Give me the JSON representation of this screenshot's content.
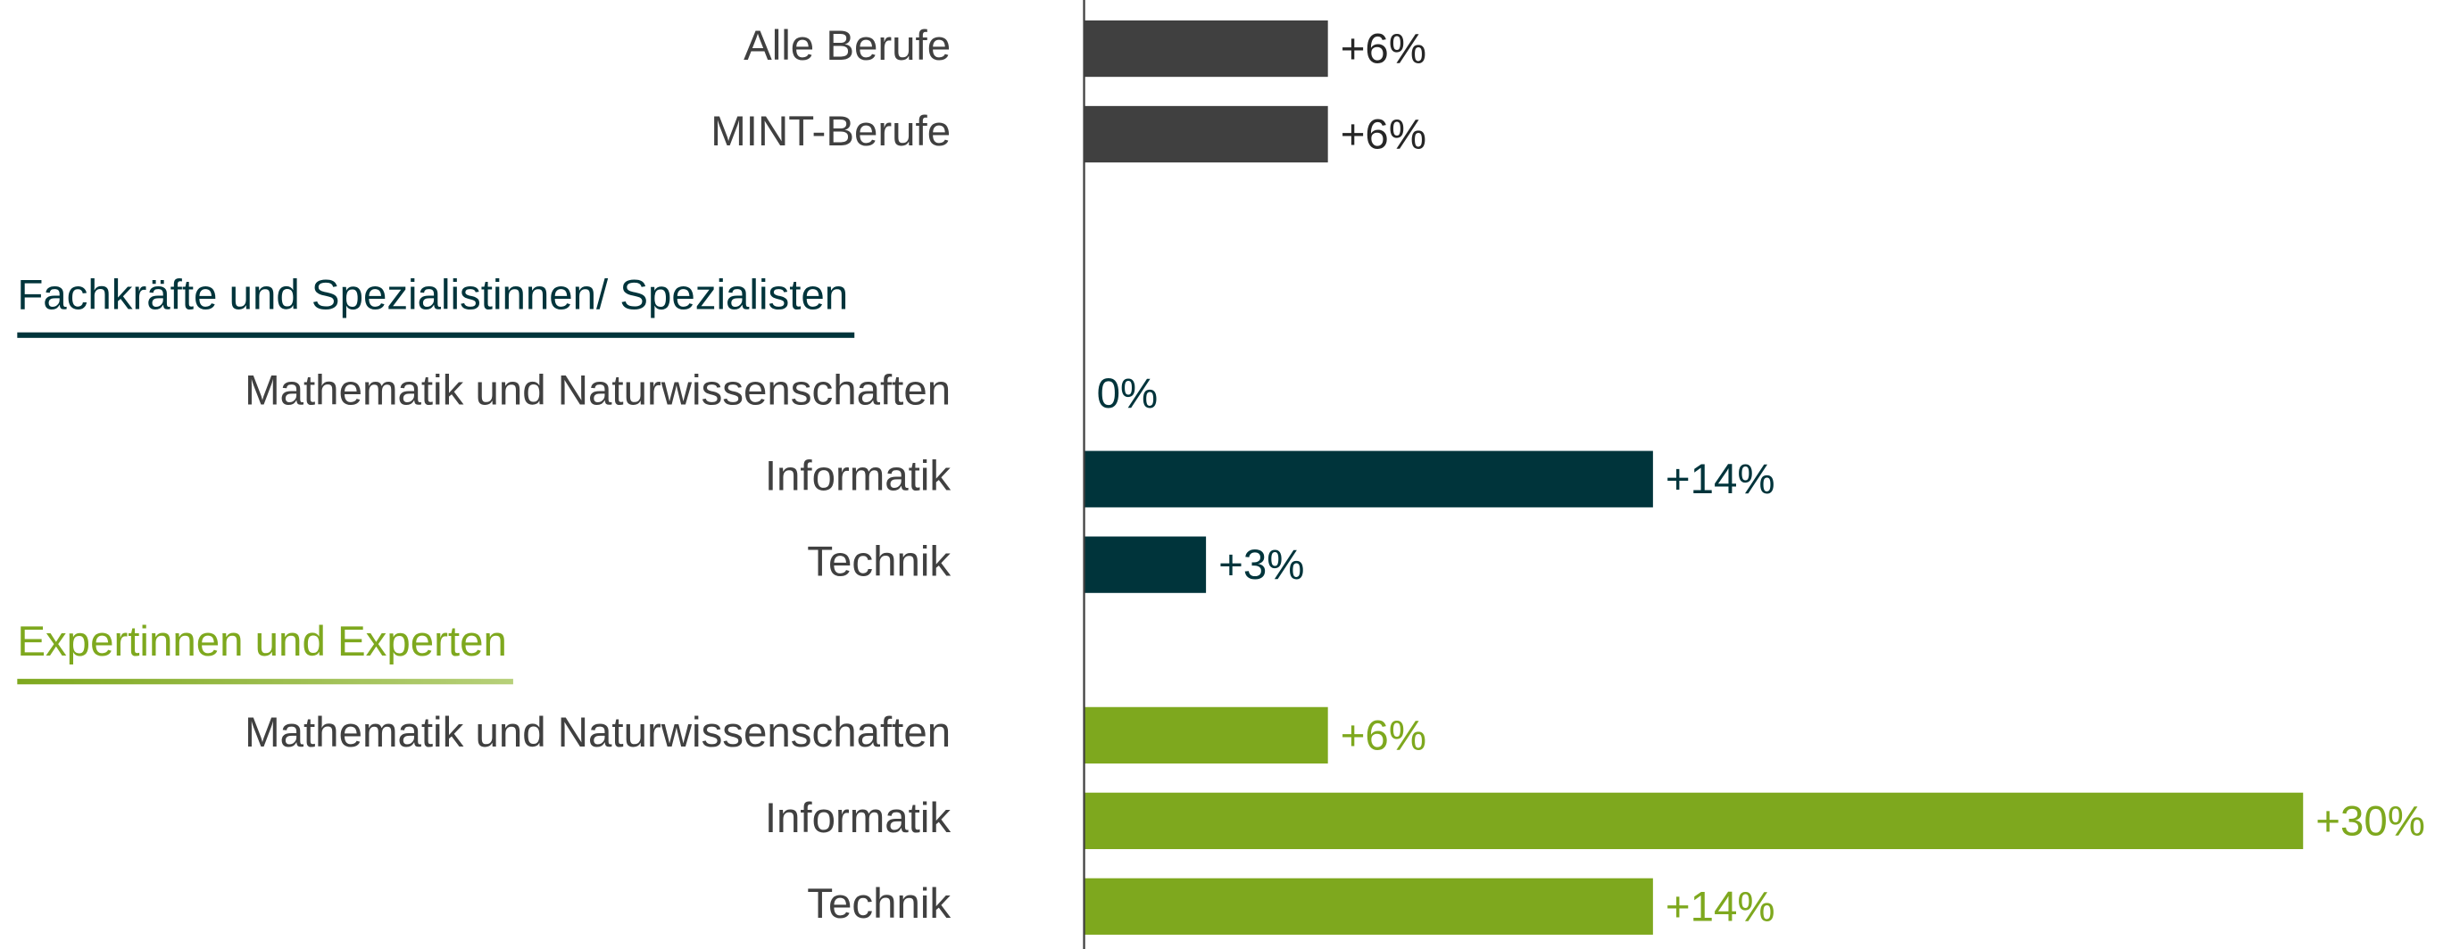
{
  "chart_data": {
    "type": "bar",
    "orientation": "horizontal",
    "xlim": [
      0,
      30
    ],
    "groups": [
      {
        "color": "#404040",
        "label_color": "#262626",
        "categories": [
          "Alle Berufe",
          "MINT-Berufe"
        ],
        "values": [
          6,
          6
        ],
        "value_labels": [
          "+6%",
          "+6%"
        ]
      },
      {
        "title": "Fachkräfte und Spezialistinnen/ Spezialisten",
        "color": "#00343b",
        "label_color": "#00343b",
        "categories": [
          "Mathematik und Naturwissenschaften",
          "Informatik",
          "Technik"
        ],
        "values": [
          0,
          14,
          3
        ],
        "value_labels": [
          "0%",
          "+14%",
          "+3%"
        ]
      },
      {
        "title": "Expertinnen und Experten",
        "color": "#7ea81e",
        "label_color": "#7ea81e",
        "categories": [
          "Mathematik und Naturwissenschaften",
          "Informatik",
          "Technik"
        ],
        "values": [
          6,
          30,
          14
        ],
        "value_labels": [
          "+6%",
          "+30%",
          "+14%"
        ]
      }
    ]
  }
}
